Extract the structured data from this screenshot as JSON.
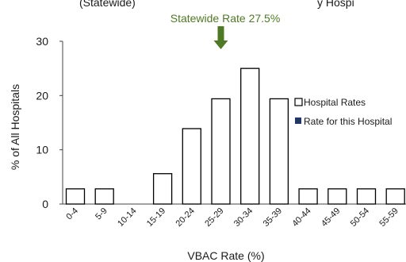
{
  "header_fragment": "(Statewide)",
  "header_fragment_right": "y Hospi",
  "chart_data": {
    "type": "bar",
    "categories": [
      "0-4",
      "5-9",
      "10-14",
      "15-19",
      "20-24",
      "25-29",
      "30-34",
      "35-39",
      "40-44",
      "45-49",
      "50-54",
      "55-59"
    ],
    "series": [
      {
        "name": "Hospital Rates",
        "values": [
          2.8,
          2.8,
          0,
          5.6,
          13.9,
          19.4,
          25.0,
          19.4,
          2.8,
          2.8,
          2.8,
          2.8
        ]
      }
    ],
    "legend": [
      {
        "label": "Hospital Rates",
        "swatch": "#ffffff"
      },
      {
        "label": "Rate for this Hospital",
        "swatch": "#1f3864"
      }
    ],
    "annotation": {
      "text": "Statewide Rate 27.5%",
      "value": 27.5,
      "color": "#4e7a25"
    },
    "xlabel": "VBAC Rate (%)",
    "ylabel": "% of All Hospitals",
    "ylim": [
      0,
      30
    ],
    "yticks": [
      0,
      10,
      20,
      30
    ],
    "grid": false,
    "legend_position": "right"
  }
}
